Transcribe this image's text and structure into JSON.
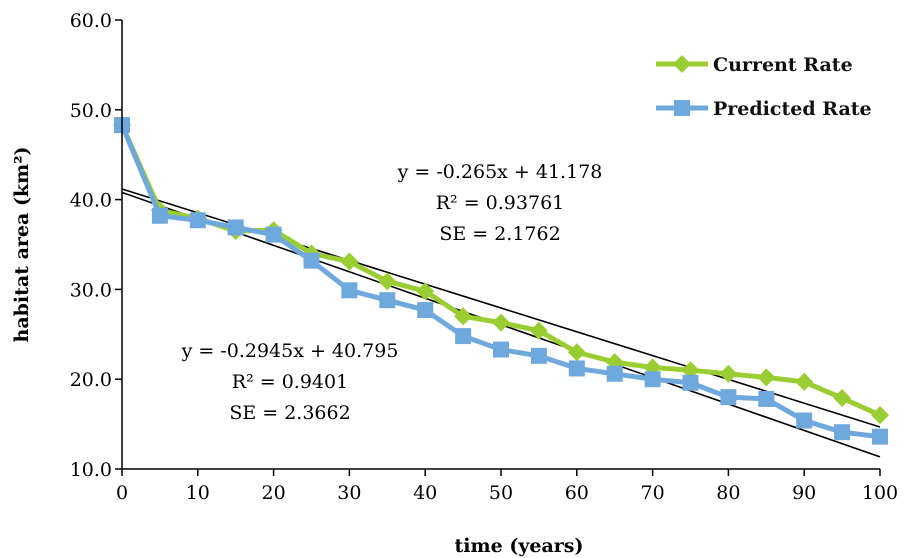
{
  "chart_data": {
    "type": "line",
    "xlabel": "time (years)",
    "ylabel": "habitat area (km²)",
    "xlim": [
      0,
      100
    ],
    "ylim": [
      10,
      60
    ],
    "x_ticks": [
      "0",
      "10",
      "20",
      "30",
      "40",
      "50",
      "60",
      "70",
      "80",
      "90",
      "100"
    ],
    "y_ticks": [
      "10.0",
      "20.0",
      "30.0",
      "40.0",
      "50.0",
      "60.0"
    ],
    "grid": false,
    "legend_position": "top-right",
    "x": [
      0,
      5,
      10,
      15,
      20,
      25,
      30,
      35,
      40,
      45,
      50,
      55,
      60,
      65,
      70,
      75,
      80,
      85,
      90,
      95,
      100
    ],
    "series": [
      {
        "name": "Current Rate",
        "color": "#9acd32",
        "marker": "diamond",
        "values": [
          48.3,
          38.8,
          37.9,
          36.5,
          36.6,
          34.0,
          33.1,
          30.9,
          29.8,
          27.0,
          26.3,
          25.4,
          23.0,
          21.9,
          21.3,
          21.0,
          20.6,
          20.2,
          19.7,
          17.9,
          16.0
        ]
      },
      {
        "name": "Predicted Rate",
        "color": "#6fa8dc",
        "marker": "square",
        "values": [
          48.3,
          38.2,
          37.7,
          36.9,
          36.1,
          33.2,
          29.9,
          28.8,
          27.7,
          24.8,
          23.3,
          22.6,
          21.2,
          20.6,
          20.0,
          19.6,
          18.0,
          17.8,
          15.4,
          14.1,
          13.6
        ]
      }
    ],
    "trendlines": [
      {
        "slope": -0.265,
        "intercept": 41.178,
        "color": "#000000"
      },
      {
        "slope": -0.2945,
        "intercept": 40.795,
        "color": "#000000"
      }
    ],
    "annotations": [
      {
        "lines": [
          "y = -0.265x + 41.178",
          "R² = 0.93761",
          "SE = 2.1762"
        ]
      },
      {
        "lines": [
          "y = -0.2945x + 40.795",
          "R² = 0.9401",
          "SE = 2.3662"
        ]
      }
    ]
  }
}
